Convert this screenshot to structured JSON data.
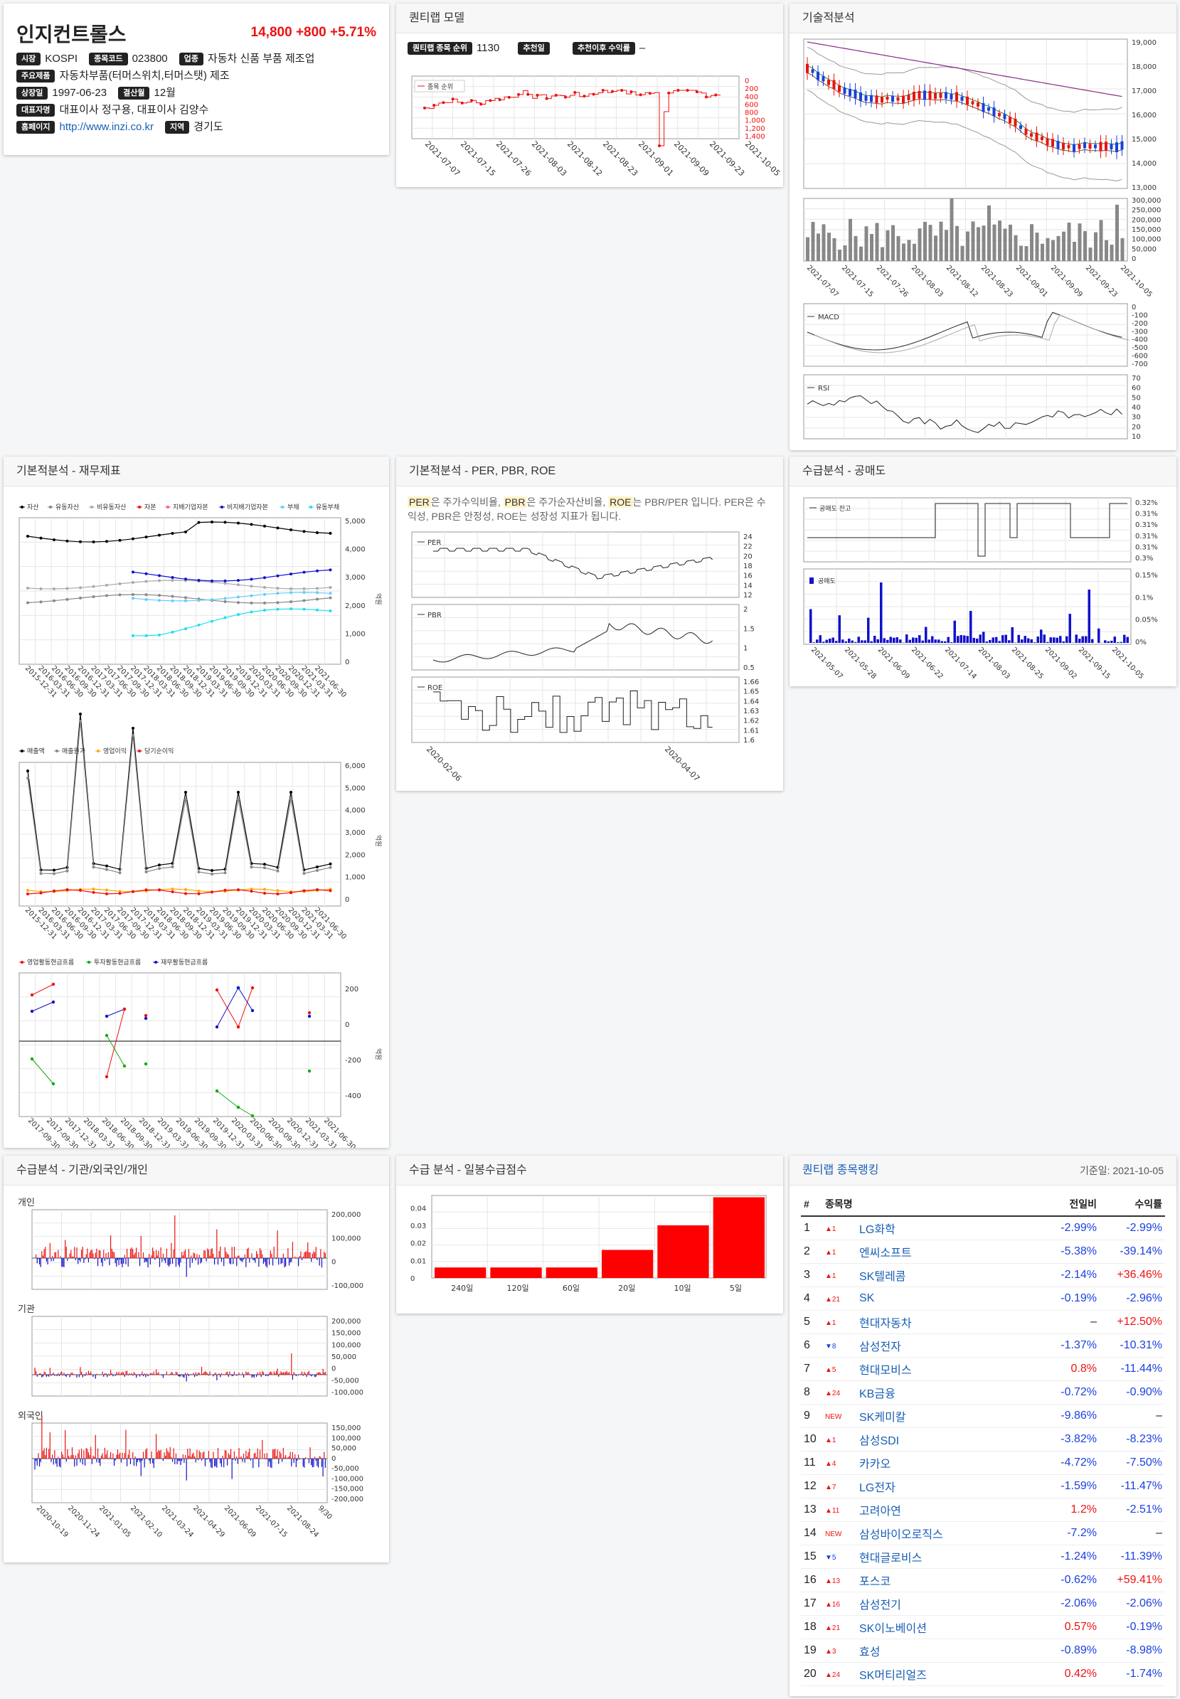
{
  "company": {
    "name": "인지컨트롤스",
    "price": "14,800",
    "change": "+800",
    "change_pct": "+5.71%",
    "rows": [
      [
        {
          "tag": "시장",
          "value": "KOSPI"
        },
        {
          "tag": "종목코드",
          "value": "023800"
        },
        {
          "tag": "업종",
          "value": "자동차 신품 부품 제조업"
        }
      ],
      [
        {
          "tag": "주요제품",
          "value": "자동차부품(터머스위치,터머스탯) 제조"
        }
      ],
      [
        {
          "tag": "상장일",
          "value": "1997-06-23"
        },
        {
          "tag": "결산월",
          "value": "12월"
        }
      ],
      [
        {
          "tag": "대표자명",
          "value": "대표이사 정구용, 대표이사 김양수"
        }
      ],
      [
        {
          "tag": "홈페이지",
          "value": "http://www.inzi.co.kr",
          "link": true
        },
        {
          "tag": "지역",
          "value": "경기도"
        }
      ]
    ]
  },
  "quantilab": {
    "title": "퀀티랩 모델",
    "rank_tag": "퀀티랩 종목 순위",
    "rank_value": "1130",
    "rec_tag": "추천일",
    "rec_value": "",
    "ret_tag": "추천이후 수익률",
    "ret_value": "–",
    "legend": "종목 순위"
  },
  "technical": {
    "title": "기술적분석",
    "macd_label": "MACD",
    "rsi_label": "RSI"
  },
  "fundamental": {
    "title": "기본적분석 - 재무제표",
    "legend1": [
      "자산",
      "유동자산",
      "비유동자산",
      "자본",
      "지배기업자본",
      "비지배기업자본",
      "부채",
      "유동부채"
    ],
    "legend2": [
      "매출액",
      "매출원가",
      "영업이익",
      "당기순이익"
    ],
    "legend3": [
      "영업활동현금흐름",
      "투자활동현금흐름",
      "재무활동현금흐름"
    ],
    "unit": "억원"
  },
  "valuation": {
    "title": "기본적분석 - PER, PBR, ROE",
    "desc_parts": [
      "PER",
      "은 주가수익비율, ",
      "PBR",
      "은 주가순자산비율, ",
      "ROE",
      "는 PBR/PER 입니다. PER은 수익성, PBR은 안정성, ROE는 성장성 지표가 됩니다."
    ],
    "per": "PER",
    "pbr": "PBR",
    "roe": "ROE",
    "dates": [
      "2020-02-06",
      "2020-04-07"
    ]
  },
  "short": {
    "title": "수급분석 - 공매도",
    "balance_label": "공매도 잔고",
    "volume_label": "공매도"
  },
  "investor": {
    "title": "수급분석 - 기관/외국인/개인",
    "groups": [
      "개인",
      "기관",
      "외국인"
    ]
  },
  "daily": {
    "title": "수급 분석 - 일봉수급점수",
    "chart_data": {
      "type": "bar",
      "categories": [
        "240일",
        "120일",
        "60일",
        "20일",
        "10일",
        "5일"
      ],
      "values": [
        0.006,
        0.006,
        0.006,
        0.016,
        0.03,
        0.046
      ],
      "ylim": [
        0,
        0.047
      ],
      "yticks": [
        "0",
        "0.01",
        "0.02",
        "0.03",
        "0.04"
      ]
    }
  },
  "ranking": {
    "title": "퀀티랩 종목랭킹",
    "base_date": "기준일: 2021-10-05",
    "headers": [
      "#",
      "종목명",
      "전일비",
      "수익률"
    ],
    "rows": [
      {
        "n": "1",
        "chg": "▲1",
        "name": "LG화학",
        "d": "-2.99%",
        "r": "-2.99%"
      },
      {
        "n": "2",
        "chg": "▲1",
        "name": "엔씨소프트",
        "d": "-5.38%",
        "r": "-39.14%"
      },
      {
        "n": "3",
        "chg": "▲1",
        "name": "SK텔레콤",
        "d": "-2.14%",
        "r": "+36.46%"
      },
      {
        "n": "4",
        "chg": "▲21",
        "name": "SK",
        "d": "-0.19%",
        "r": "-2.96%"
      },
      {
        "n": "5",
        "chg": "▲1",
        "name": "현대자동차",
        "d": "–",
        "r": "+12.50%"
      },
      {
        "n": "6",
        "chg": "▼8",
        "name": "삼성전자",
        "d": "-1.37%",
        "r": "-10.31%"
      },
      {
        "n": "7",
        "chg": "▲5",
        "name": "현대모비스",
        "d": "0.8%",
        "r": "-11.44%"
      },
      {
        "n": "8",
        "chg": "▲24",
        "name": "KB금융",
        "d": "-0.72%",
        "r": "-0.90%"
      },
      {
        "n": "9",
        "chg": "NEW",
        "name": "SK케미칼",
        "d": "-9.86%",
        "r": "–"
      },
      {
        "n": "10",
        "chg": "▲1",
        "name": "삼성SDI",
        "d": "-3.82%",
        "r": "-8.23%"
      },
      {
        "n": "11",
        "chg": "▲4",
        "name": "카카오",
        "d": "-4.72%",
        "r": "-7.50%"
      },
      {
        "n": "12",
        "chg": "▲7",
        "name": "LG전자",
        "d": "-1.59%",
        "r": "-11.47%"
      },
      {
        "n": "13",
        "chg": "▲11",
        "name": "고려아연",
        "d": "1.2%",
        "r": "-2.51%"
      },
      {
        "n": "14",
        "chg": "NEW",
        "name": "삼성바이오로직스",
        "d": "-7.2%",
        "r": "–"
      },
      {
        "n": "15",
        "chg": "▼5",
        "name": "현대글로비스",
        "d": "-1.24%",
        "r": "-11.39%"
      },
      {
        "n": "16",
        "chg": "▲13",
        "name": "포스코",
        "d": "-0.62%",
        "r": "+59.41%"
      },
      {
        "n": "17",
        "chg": "▲16",
        "name": "삼성전기",
        "d": "-2.06%",
        "r": "-2.06%"
      },
      {
        "n": "18",
        "chg": "▲21",
        "name": "SK이노베이션",
        "d": "0.57%",
        "r": "-0.19%"
      },
      {
        "n": "19",
        "chg": "▲3",
        "name": "효성",
        "d": "-0.89%",
        "r": "-8.98%"
      },
      {
        "n": "20",
        "chg": "▲24",
        "name": "SK머티리얼즈",
        "d": "0.42%",
        "r": "-1.74%"
      }
    ]
  }
}
